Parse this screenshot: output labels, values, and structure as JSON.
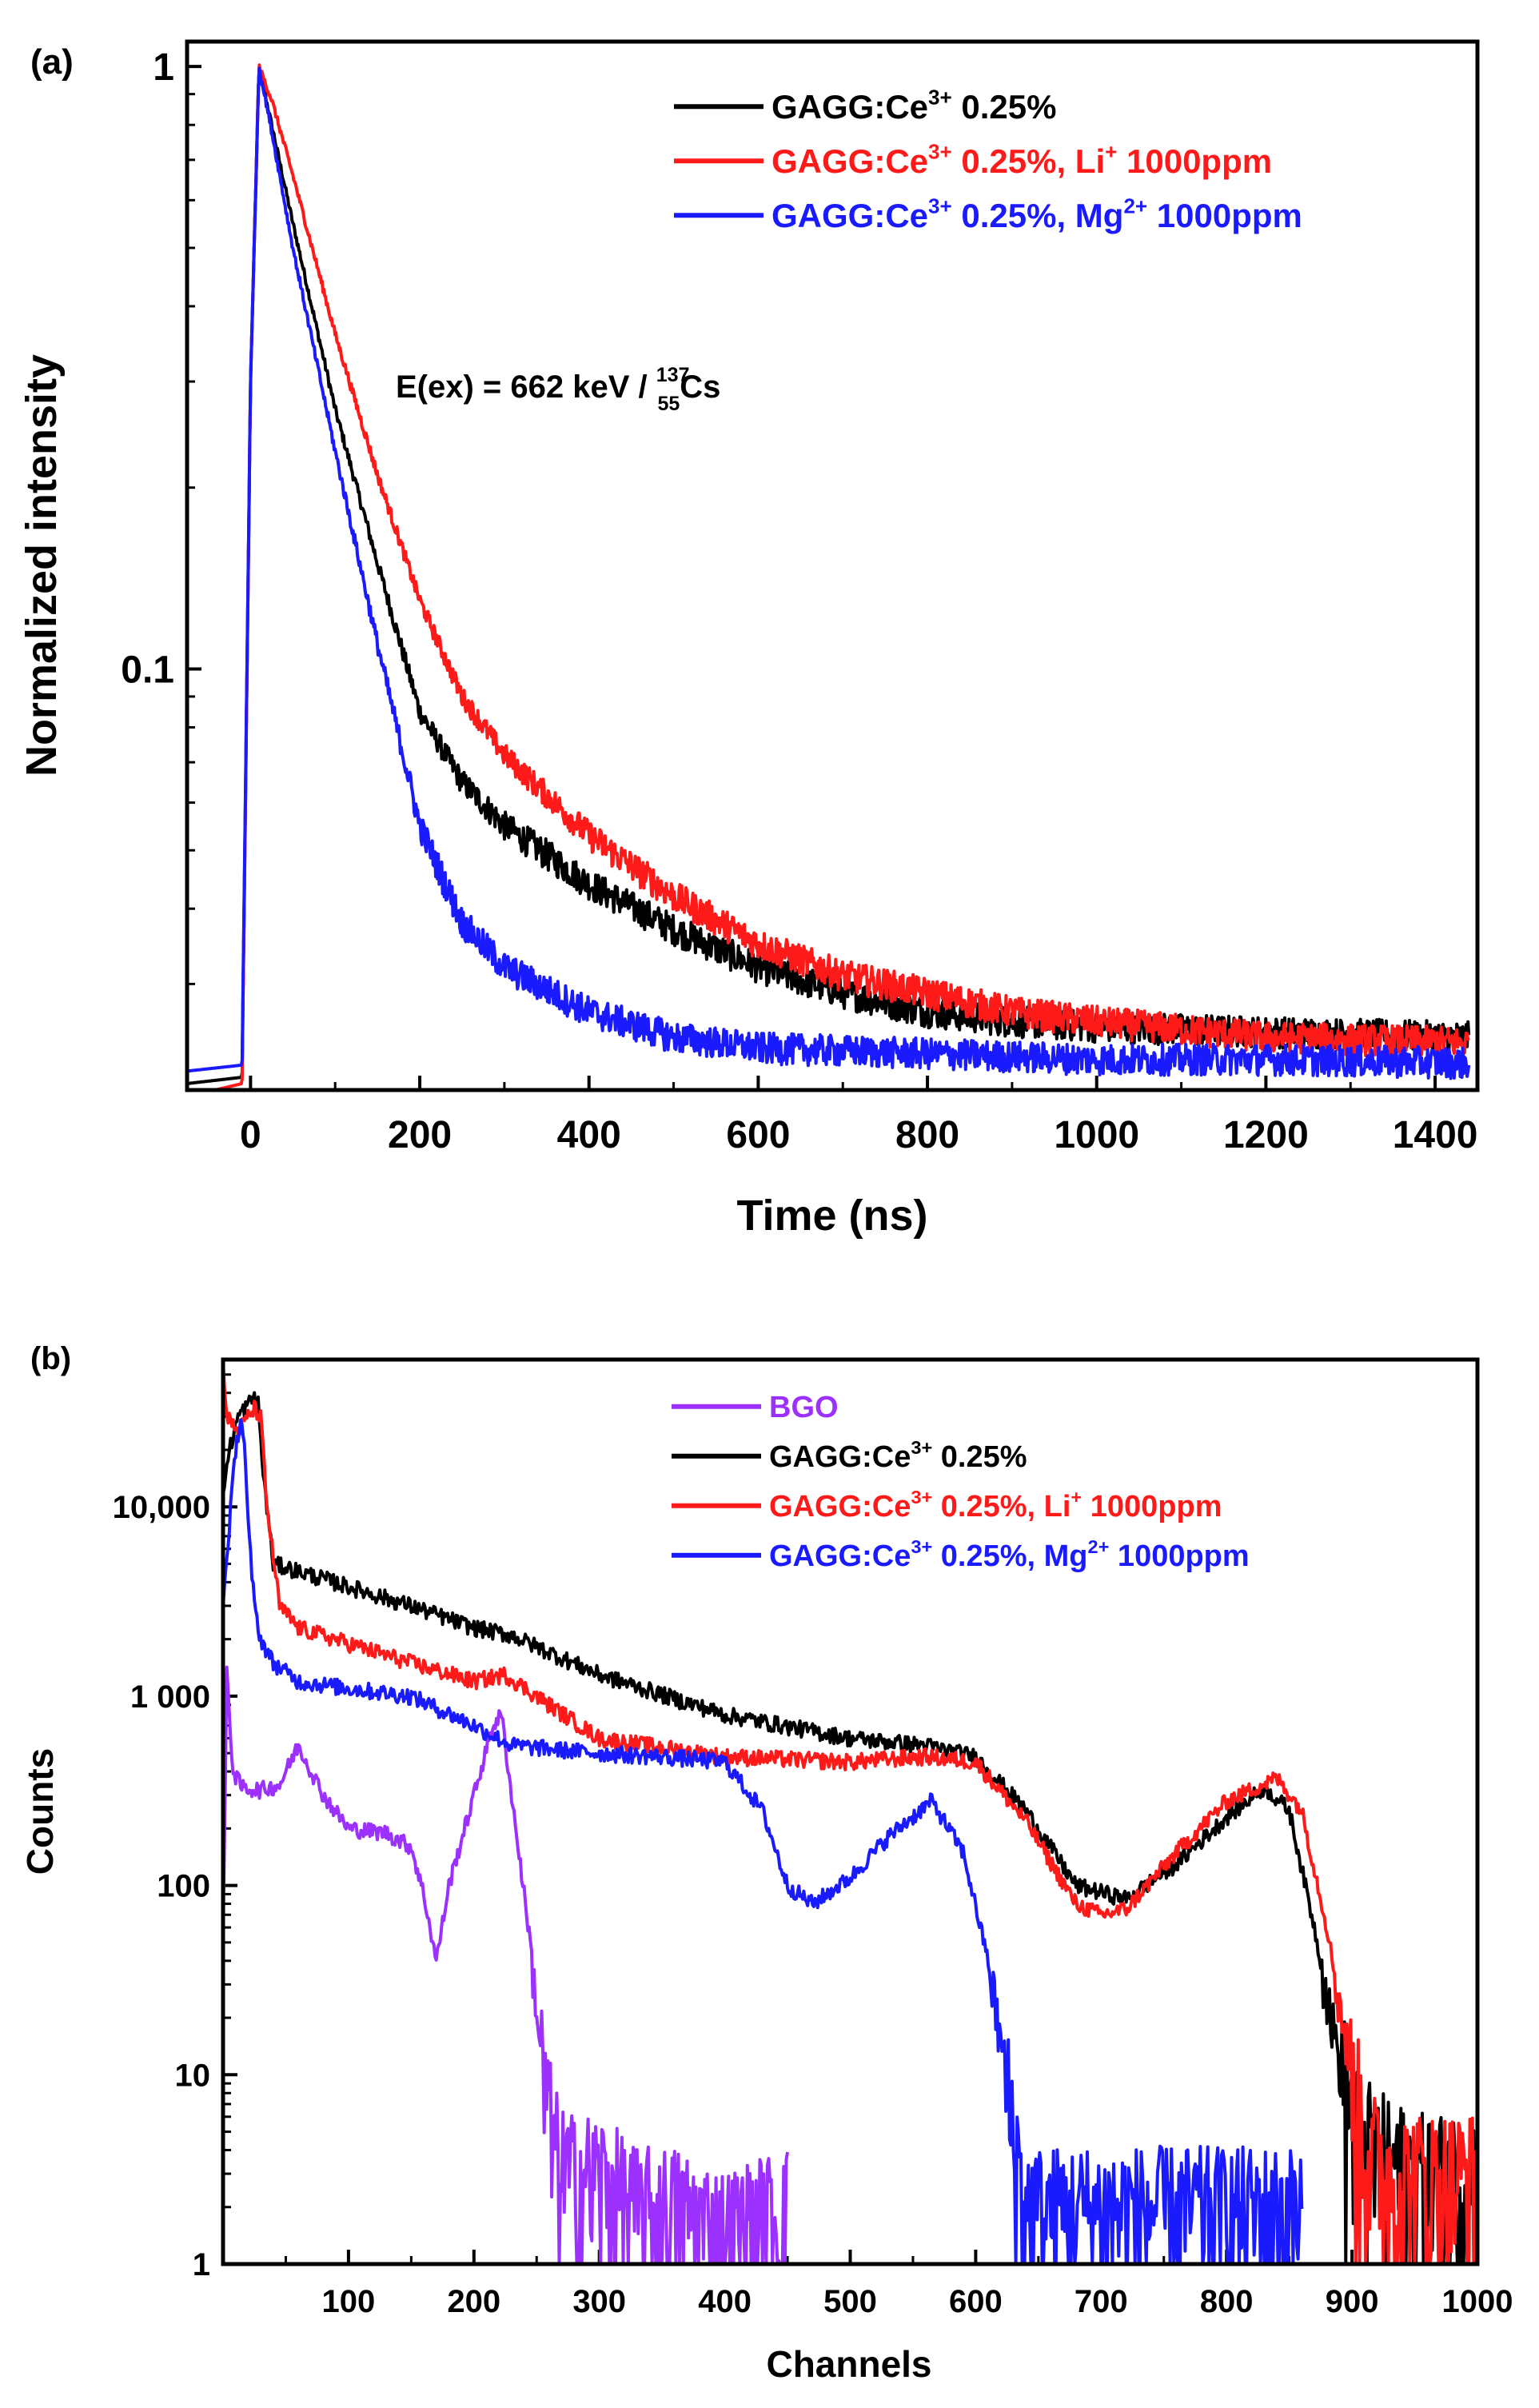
{
  "colors": {
    "black": "#000000",
    "red": "#ff1a1a",
    "blue": "#1a1aff",
    "purple": "#9b30ff"
  },
  "chart_data": [
    {
      "panel_label": "(a)",
      "type": "line",
      "xlabel": "Time (ns)",
      "ylabel": "Normalized intensity",
      "xlim": [
        -75,
        1450
      ],
      "ylim": [
        0.02,
        1.1
      ],
      "yscale": "log",
      "xticks": [
        0,
        200,
        400,
        600,
        800,
        1000,
        1200,
        1400
      ],
      "xtick_labels": [
        "0",
        "200",
        "400",
        "600",
        "800",
        "1000",
        "1200",
        "1400"
      ],
      "yticks": [
        0.1,
        1
      ],
      "ytick_labels": [
        "0.1",
        "1"
      ],
      "annotation": {
        "prefix": "E(ex) = 662 keV / ",
        "mass": "137",
        "atomic": "55",
        "element": "Cs"
      },
      "legend_position": "top-right",
      "series": [
        {
          "name": "GAGG:Ce³⁺ 0.25%",
          "legend": [
            "GAGG:Ce",
            "3+",
            " 0.25%"
          ],
          "color": "black",
          "x": [
            -75,
            -10,
            0,
            10,
            25,
            50,
            100,
            150,
            200,
            250,
            300,
            400,
            500,
            600,
            700,
            800,
            900,
            1000,
            1200,
            1440
          ],
          "y": [
            0.0205,
            0.021,
            0.3,
            1.0,
            0.8,
            0.55,
            0.27,
            0.15,
            0.085,
            0.065,
            0.055,
            0.044,
            0.037,
            0.032,
            0.029,
            0.027,
            0.026,
            0.0255,
            0.025,
            0.0245
          ]
        },
        {
          "name": "GAGG:Ce³⁺ 0.25%, Li⁺ 1000ppm",
          "legend": [
            "GAGG:Ce",
            "3+",
            " 0.25%, Li",
            "+",
            " 1000ppm"
          ],
          "color": "red",
          "x": [
            -75,
            -10,
            0,
            10,
            25,
            50,
            100,
            150,
            200,
            250,
            300,
            400,
            500,
            600,
            700,
            800,
            900,
            1000,
            1200,
            1440
          ],
          "y": [
            0.0195,
            0.0205,
            0.3,
            1.0,
            0.88,
            0.66,
            0.36,
            0.21,
            0.13,
            0.09,
            0.072,
            0.053,
            0.042,
            0.035,
            0.031,
            0.029,
            0.027,
            0.026,
            0.0245,
            0.024
          ]
        },
        {
          "name": "GAGG:Ce³⁺ 0.25%, Mg²⁺ 1000ppm",
          "legend": [
            "GAGG:Ce",
            "3+",
            " 0.25%, Mg",
            "2+",
            " 1000ppm"
          ],
          "color": "blue",
          "x": [
            -75,
            -10,
            0,
            10,
            25,
            50,
            100,
            150,
            200,
            250,
            300,
            400,
            500,
            600,
            800,
            1000,
            1200,
            1440
          ],
          "y": [
            0.0215,
            0.022,
            0.3,
            1.0,
            0.78,
            0.5,
            0.23,
            0.11,
            0.055,
            0.038,
            0.032,
            0.027,
            0.0245,
            0.0235,
            0.023,
            0.0225,
            0.0225,
            0.0222
          ]
        }
      ]
    },
    {
      "panel_label": "(b)",
      "type": "line",
      "xlabel": "Channels",
      "ylabel": "Counts",
      "xlim": [
        0,
        1000
      ],
      "ylim": [
        1,
        60000
      ],
      "yscale": "log",
      "xticks": [
        100,
        200,
        300,
        400,
        500,
        600,
        700,
        800,
        900,
        1000
      ],
      "xtick_labels": [
        "100",
        "200",
        "300",
        "400",
        "500",
        "600",
        "700",
        "800",
        "900",
        "1000"
      ],
      "yticks": [
        1,
        10,
        100,
        1000,
        10000
      ],
      "ytick_labels": [
        "1",
        "10",
        "100",
        "1 000",
        "10,000"
      ],
      "legend_position": "top-right",
      "series": [
        {
          "name": "BGO",
          "legend": [
            "BGO"
          ],
          "color": "purple",
          "x": [
            0,
            3,
            8,
            15,
            30,
            45,
            60,
            80,
            100,
            130,
            150,
            160,
            170,
            180,
            200,
            215,
            222,
            230,
            245,
            255,
            265,
            275,
            300,
            330,
            360,
            400,
            450
          ],
          "y": [
            50,
            1300,
            400,
            330,
            320,
            340,
            550,
            300,
            200,
            190,
            160,
            90,
            40,
            100,
            300,
            700,
            800,
            300,
            50,
            10,
            4,
            3,
            3,
            2,
            2,
            1.5,
            2
          ]
        },
        {
          "name": "GAGG:Ce³⁺ 0.25%",
          "legend": [
            "GAGG:Ce",
            "3+",
            " 0.25%"
          ],
          "color": "black",
          "x": [
            0,
            5,
            12,
            20,
            25,
            28,
            32,
            40,
            50,
            100,
            150,
            200,
            230,
            300,
            400,
            500,
            560,
            600,
            640,
            680,
            720,
            760,
            800,
            830,
            850,
            870,
            890,
            905,
            920,
            950,
            1000
          ],
          "y": [
            12000,
            20000,
            30000,
            35000,
            38000,
            35000,
            15000,
            5000,
            4800,
            3800,
            3000,
            2300,
            2100,
            1300,
            800,
            600,
            550,
            480,
            250,
            100,
            85,
            130,
            230,
            330,
            250,
            60,
            12,
            5,
            4,
            3,
            3
          ]
        },
        {
          "name": "GAGG:Ce³⁺ 0.25%, Li⁺ 1000ppm",
          "legend": [
            "GAGG:Ce",
            "3+",
            " 0.25%, Li",
            "+",
            " 1000ppm"
          ],
          "color": "red",
          "x": [
            0,
            3,
            12,
            20,
            25,
            30,
            35,
            45,
            60,
            100,
            150,
            200,
            225,
            260,
            300,
            400,
            500,
            560,
            600,
            640,
            680,
            700,
            720,
            760,
            800,
            840,
            860,
            880,
            900,
            915,
            930,
            1000
          ],
          "y": [
            60000,
            30000,
            25000,
            30000,
            33000,
            30000,
            10000,
            3000,
            2300,
            1900,
            1500,
            1200,
            1300,
            900,
            600,
            480,
            450,
            480,
            450,
            220,
            80,
            70,
            75,
            150,
            280,
            370,
            250,
            60,
            10,
            4,
            3,
            3
          ]
        },
        {
          "name": "GAGG:Ce³⁺ 0.25%, Mg²⁺ 1000ppm",
          "legend": [
            "GAGG:Ce",
            "3+",
            " 0.25%, Mg",
            "2+",
            " 1000ppm"
          ],
          "color": "blue",
          "x": [
            0,
            5,
            10,
            14,
            17,
            20,
            25,
            30,
            40,
            60,
            100,
            150,
            200,
            230,
            300,
            350,
            400,
            430,
            450,
            470,
            500,
            530,
            565,
            590,
            610,
            620,
            630,
            640,
            650,
            700,
            800,
            860
          ],
          "y": [
            3000,
            8000,
            20000,
            30000,
            22000,
            8000,
            3000,
            2000,
            1500,
            1200,
            1100,
            1000,
            700,
            550,
            500,
            480,
            450,
            250,
            100,
            80,
            110,
            180,
            280,
            150,
            40,
            15,
            5,
            2,
            2,
            2,
            2,
            2
          ]
        }
      ]
    }
  ]
}
